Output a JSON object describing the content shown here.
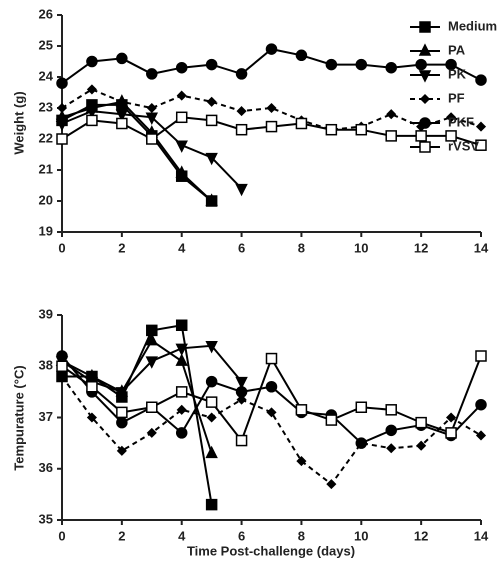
{
  "chart_data": [
    {
      "type": "line",
      "color": "#000000",
      "ylabel": "Weight (g)",
      "xlim": [
        0,
        14
      ],
      "xticks": [
        0,
        2,
        4,
        6,
        8,
        10,
        12,
        14
      ],
      "ylim": [
        19,
        26
      ],
      "yticks": [
        19,
        20,
        21,
        22,
        23,
        24,
        25,
        26
      ],
      "legend": "right",
      "series": [
        {
          "name": "Medium",
          "marker": "square-filled",
          "line": "solid",
          "x": [
            0,
            1,
            2,
            3,
            4,
            5
          ],
          "values": [
            22.6,
            23.1,
            23.1,
            22.1,
            20.8,
            20.0
          ]
        },
        {
          "name": "PA",
          "marker": "triangle-up",
          "line": "solid",
          "x": [
            0,
            1,
            2,
            3,
            4,
            5
          ],
          "values": [
            22.7,
            23.0,
            23.2,
            22.2,
            20.9,
            20.0
          ]
        },
        {
          "name": "PK",
          "marker": "triangle-down",
          "line": "solid",
          "x": [
            0,
            1,
            2,
            3,
            4,
            5,
            6
          ],
          "values": [
            22.5,
            22.9,
            22.8,
            22.7,
            21.8,
            21.4,
            20.4
          ]
        },
        {
          "name": "PF",
          "marker": "diamond",
          "line": "dashed",
          "x": [
            0,
            1,
            2,
            3,
            4,
            5,
            6,
            7,
            8,
            9,
            10,
            11,
            12,
            13,
            14
          ],
          "values": [
            23.0,
            23.6,
            23.2,
            23.0,
            23.4,
            23.2,
            22.9,
            23.0,
            22.6,
            22.3,
            22.4,
            22.8,
            22.4,
            22.7,
            22.4
          ]
        },
        {
          "name": "PKF",
          "marker": "circle",
          "line": "solid",
          "x": [
            0,
            1,
            2,
            3,
            4,
            5,
            6,
            7,
            8,
            9,
            10,
            11,
            12,
            13,
            14
          ],
          "values": [
            23.8,
            24.5,
            24.6,
            24.1,
            24.3,
            24.4,
            24.1,
            24.9,
            24.7,
            24.4,
            24.4,
            24.3,
            24.4,
            24.4,
            23.9
          ]
        },
        {
          "name": "rVSV",
          "marker": "square-open",
          "line": "solid",
          "x": [
            0,
            1,
            2,
            3,
            4,
            5,
            6,
            7,
            8,
            9,
            10,
            11,
            12,
            13,
            14
          ],
          "values": [
            22.0,
            22.6,
            22.5,
            22.0,
            22.7,
            22.6,
            22.3,
            22.4,
            22.5,
            22.3,
            22.3,
            22.1,
            22.1,
            22.1,
            21.8
          ]
        }
      ]
    },
    {
      "type": "line",
      "color": "#000000",
      "ylabel": "Tempurature (°C)",
      "xlabel": "Time Post-challenge (days)",
      "xlim": [
        0,
        14
      ],
      "xticks": [
        0,
        2,
        4,
        6,
        8,
        10,
        12,
        14
      ],
      "ylim": [
        35,
        39
      ],
      "yticks": [
        35,
        36,
        37,
        38,
        39
      ],
      "series": [
        {
          "marker": "square-filled",
          "line": "solid",
          "x": [
            0,
            1,
            2,
            3,
            4,
            5
          ],
          "values": [
            37.8,
            37.8,
            37.4,
            38.7,
            38.8,
            35.3
          ]
        },
        {
          "marker": "triangle-up",
          "line": "solid",
          "x": [
            0,
            1,
            2,
            3,
            4,
            5
          ],
          "values": [
            38.1,
            37.8,
            37.5,
            38.5,
            38.1,
            36.3
          ]
        },
        {
          "marker": "triangle-down",
          "line": "solid",
          "x": [
            0,
            1,
            2,
            3,
            4,
            5,
            6
          ],
          "values": [
            38.1,
            37.7,
            37.5,
            38.1,
            38.35,
            38.4,
            37.7
          ]
        },
        {
          "marker": "diamond",
          "line": "dashed",
          "x": [
            0,
            1,
            2,
            3,
            4,
            5,
            6,
            7,
            8,
            9,
            10,
            11,
            12,
            13,
            14
          ],
          "values": [
            37.8,
            37.0,
            36.35,
            36.7,
            37.15,
            37.0,
            37.35,
            37.1,
            36.15,
            35.7,
            36.5,
            36.4,
            36.45,
            37.0,
            36.65
          ]
        },
        {
          "marker": "circle",
          "line": "solid",
          "x": [
            0,
            1,
            2,
            3,
            4,
            5,
            6,
            7,
            8,
            9,
            10,
            11,
            12,
            13,
            14
          ],
          "values": [
            38.2,
            37.5,
            36.9,
            37.2,
            36.7,
            37.7,
            37.5,
            37.6,
            37.1,
            37.05,
            36.5,
            36.75,
            36.85,
            36.65,
            37.25
          ]
        },
        {
          "marker": "square-open",
          "line": "solid",
          "x": [
            0,
            1,
            2,
            3,
            4,
            5,
            6,
            7,
            8,
            9,
            10,
            11,
            12,
            13,
            14
          ],
          "values": [
            38.0,
            37.6,
            37.1,
            37.2,
            37.5,
            37.3,
            36.55,
            38.15,
            37.15,
            36.95,
            37.2,
            37.15,
            36.9,
            36.7,
            38.2
          ]
        }
      ]
    }
  ]
}
